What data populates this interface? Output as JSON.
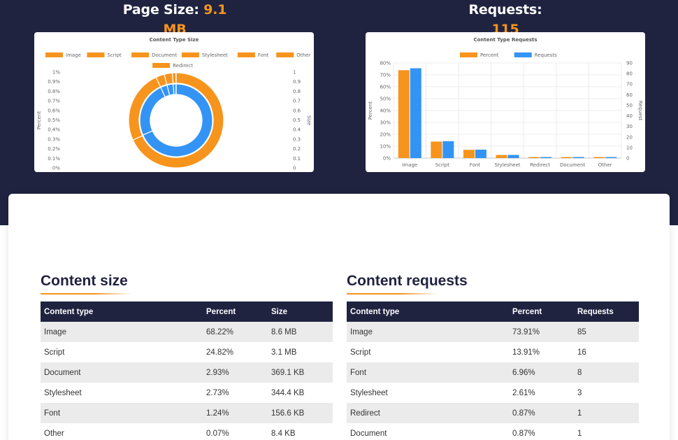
{
  "header": {
    "size_label": "Page Size:",
    "size_value": "9.1 MB",
    "requests_label": "Requests:",
    "requests_value": "115"
  },
  "colors": {
    "navy": "#1f2340",
    "orange": "#f7941d",
    "blue": "#3394f5"
  },
  "chart_data": [
    {
      "type": "pie",
      "subtype": "doughnut",
      "title": "Content Type Size",
      "legend": [
        "Image",
        "Script",
        "Document",
        "Stylesheet",
        "Font",
        "Other",
        "Redirect"
      ],
      "legend_position": "top",
      "series": [
        {
          "name": "Percent",
          "values": [
            68.22,
            24.82,
            2.93,
            2.73,
            1.24,
            0.07,
            0.0
          ]
        },
        {
          "name": "Size",
          "values": [
            8.6,
            3.1,
            0.3691,
            0.3444,
            0.1566,
            0.0084,
            0.0
          ]
        }
      ],
      "ylabel": "Percent",
      "y2label": "Size",
      "left_ticks": [
        "1%",
        "0.9%",
        "0.8%",
        "0.7%",
        "0.6%",
        "0.5%",
        "0.4%",
        "0.3%",
        "0.2%",
        "0.1%",
        "0%"
      ],
      "right_ticks": [
        "1",
        "0.9",
        "0.8",
        "0.7",
        "0.6",
        "0.5",
        "0.4",
        "0.3",
        "0.2",
        "0.1",
        "0"
      ]
    },
    {
      "type": "bar",
      "title": "Content Type Requests",
      "categories": [
        "Image",
        "Script",
        "Font",
        "Stylesheet",
        "Redirect",
        "Document",
        "Other"
      ],
      "series": [
        {
          "name": "Percent",
          "values": [
            73.91,
            13.91,
            6.96,
            2.61,
            0.87,
            0.87,
            0.87
          ],
          "color": "#f7941d"
        },
        {
          "name": "Requests",
          "values": [
            85,
            16,
            8,
            3,
            1,
            1,
            1
          ],
          "color": "#3394f5"
        }
      ],
      "ylabel": "Percent",
      "y2label": "Request",
      "ylim": [
        0,
        80
      ],
      "y2lim": [
        0,
        90
      ],
      "left_ticks": [
        "80%",
        "70%",
        "60%",
        "50%",
        "40%",
        "30%",
        "20%",
        "10%",
        "0%"
      ],
      "right_ticks": [
        "90",
        "80",
        "70",
        "60",
        "50",
        "40",
        "30",
        "20",
        "10",
        "0"
      ],
      "legend_position": "top",
      "grid": true
    }
  ],
  "content_size": {
    "title": "Content size",
    "columns": [
      "Content type",
      "Percent",
      "Size"
    ],
    "rows": [
      [
        "Image",
        "68.22%",
        "8.6 MB"
      ],
      [
        "Script",
        "24.82%",
        "3.1 MB"
      ],
      [
        "Document",
        "2.93%",
        "369.1 KB"
      ],
      [
        "Stylesheet",
        "2.73%",
        "344.4 KB"
      ],
      [
        "Font",
        "1.24%",
        "156.6 KB"
      ],
      [
        "Other",
        "0.07%",
        "8.4 KB"
      ]
    ]
  },
  "content_requests": {
    "title": "Content requests",
    "columns": [
      "Content type",
      "Percent",
      "Requests"
    ],
    "rows": [
      [
        "Image",
        "73.91%",
        "85"
      ],
      [
        "Script",
        "13.91%",
        "16"
      ],
      [
        "Font",
        "6.96%",
        "8"
      ],
      [
        "Stylesheet",
        "2.61%",
        "3"
      ],
      [
        "Redirect",
        "0.87%",
        "1"
      ],
      [
        "Document",
        "0.87%",
        "1"
      ]
    ]
  }
}
